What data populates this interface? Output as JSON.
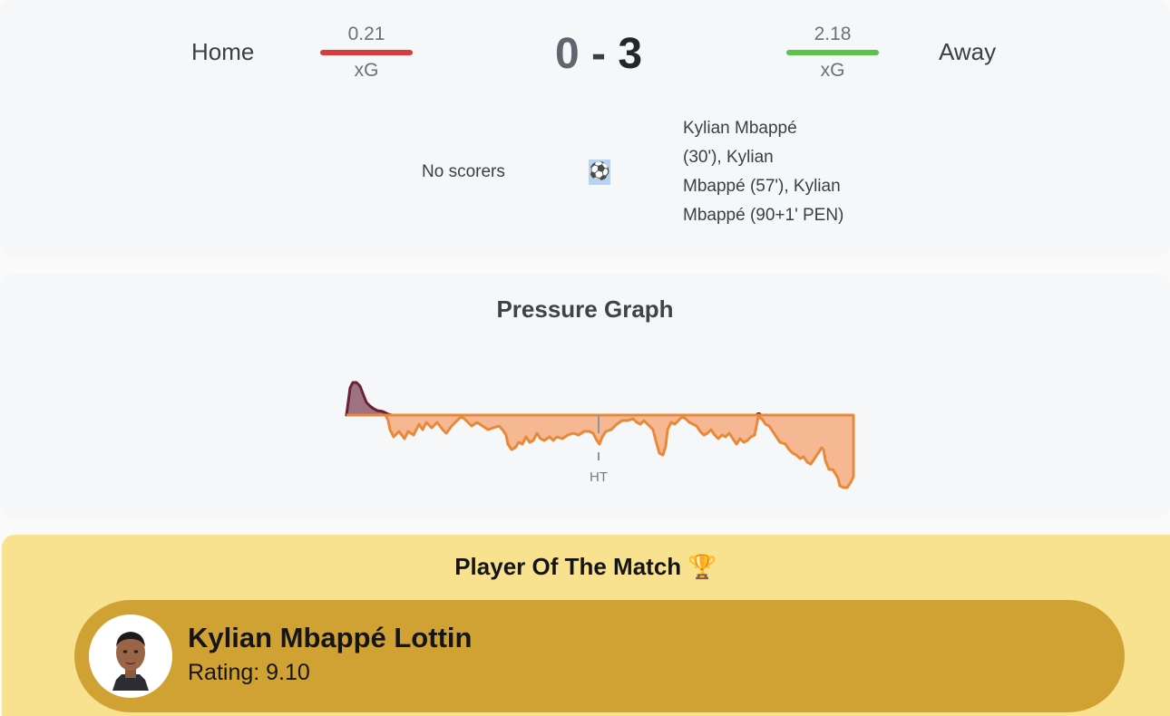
{
  "match": {
    "home_label": "Home",
    "away_label": "Away",
    "home_xg": "0.21",
    "away_xg": "2.18",
    "xg_label": "xG",
    "home_score": "0",
    "away_score": "3",
    "score_separator": "-",
    "home_color": "#d93a3a",
    "away_color": "#5cc24a",
    "home_scorers": "No scorers",
    "goal_icon": "soccer-ball-icon",
    "away_scorers_lines": [
      "Kylian Mbappé",
      "(30'), Kylian",
      "Mbappé (57'), Kylian",
      "Mbappé (90+1' PEN)"
    ]
  },
  "pressure_graph": {
    "title": "Pressure Graph",
    "halftime_label": "HT",
    "home_color": "#6b1f38",
    "away_color": "#e8893a"
  },
  "player_of_the_match": {
    "title": "Player Of The Match 🏆",
    "name": "Kylian Mbappé Lottin",
    "rating": "Rating: 9.10"
  }
}
